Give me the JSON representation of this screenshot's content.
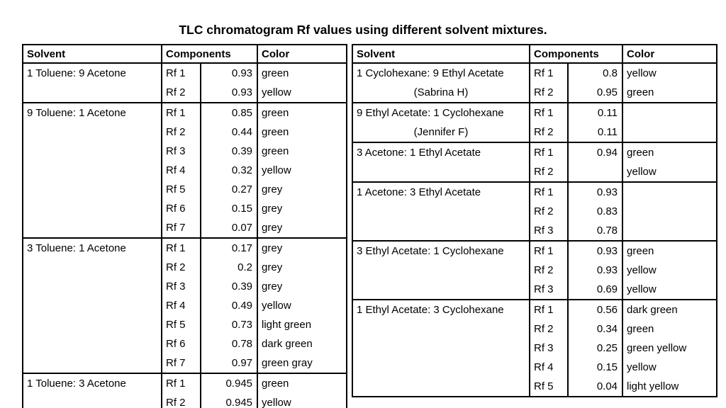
{
  "page": {
    "title": "TLC chromatogram Rf values using different solvent mixtures."
  },
  "columns": {
    "solvent": "Solvent",
    "components": "Components",
    "color": "Color"
  },
  "tables": [
    {
      "id": "left",
      "groups": [
        {
          "solvent": [
            "1 Toluene: 9 Acetone"
          ],
          "rows": [
            {
              "rf": "Rf 1",
              "value": "0.93",
              "color": "green"
            },
            {
              "rf": "Rf 2",
              "value": "0.93",
              "color": "yellow"
            }
          ]
        },
        {
          "solvent": [
            "9 Toluene: 1 Acetone"
          ],
          "rows": [
            {
              "rf": "Rf 1",
              "value": "0.85",
              "color": "green"
            },
            {
              "rf": "Rf 2",
              "value": "0.44",
              "color": "green"
            },
            {
              "rf": "Rf 3",
              "value": "0.39",
              "color": "green"
            },
            {
              "rf": "Rf 4",
              "value": "0.32",
              "color": "yellow"
            },
            {
              "rf": "Rf 5",
              "value": "0.27",
              "color": "grey"
            },
            {
              "rf": "Rf 6",
              "value": "0.15",
              "color": "grey"
            },
            {
              "rf": "Rf 7",
              "value": "0.07",
              "color": "grey"
            }
          ]
        },
        {
          "solvent": [
            "3 Toluene: 1 Acetone"
          ],
          "rows": [
            {
              "rf": "Rf 1",
              "value": "0.17",
              "color": "grey"
            },
            {
              "rf": "Rf 2",
              "value": "0.2",
              "color": "grey"
            },
            {
              "rf": "Rf 3",
              "value": "0.39",
              "color": "grey"
            },
            {
              "rf": "Rf 4",
              "value": "0.49",
              "color": "yellow"
            },
            {
              "rf": "Rf 5",
              "value": "0.73",
              "color": "light green"
            },
            {
              "rf": "Rf 6",
              "value": "0.78",
              "color": "dark green"
            },
            {
              "rf": "Rf 7",
              "value": "0.97",
              "color": "green gray"
            }
          ]
        },
        {
          "solvent": [
            "1 Toluene: 3 Acetone"
          ],
          "rows": [
            {
              "rf": "Rf 1",
              "value": "0.945",
              "color": "green"
            },
            {
              "rf": "Rf 2",
              "value": "0.945",
              "color": "yellow"
            }
          ]
        }
      ]
    },
    {
      "id": "right",
      "groups": [
        {
          "solvent": [
            "1 Cyclohexane: 9 Ethyl Acetate",
            "(Sabrina H)"
          ],
          "rows": [
            {
              "rf": "Rf 1",
              "value": "0.8",
              "color": "yellow"
            },
            {
              "rf": "Rf 2",
              "value": "0.95",
              "color": "green"
            }
          ]
        },
        {
          "solvent": [
            "9 Ethyl Acetate: 1 Cyclohexane",
            "(Jennifer F)"
          ],
          "rows": [
            {
              "rf": "Rf 1",
              "value": "0.11",
              "color": ""
            },
            {
              "rf": "Rf 2",
              "value": "0.11",
              "color": ""
            }
          ]
        },
        {
          "solvent": [
            "3 Acetone: 1 Ethyl Acetate"
          ],
          "rows": [
            {
              "rf": "Rf 1",
              "value": "0.94",
              "color": "green"
            },
            {
              "rf": "Rf 2",
              "value": "",
              "color": "yellow"
            }
          ]
        },
        {
          "solvent": [
            "1 Acetone: 3 Ethyl Acetate"
          ],
          "rows": [
            {
              "rf": "Rf 1",
              "value": "0.93",
              "color": ""
            },
            {
              "rf": "Rf 2",
              "value": "0.83",
              "color": ""
            },
            {
              "rf": "Rf 3",
              "value": "0.78",
              "color": ""
            }
          ]
        },
        {
          "solvent": [
            "3 Ethyl Acetate: 1 Cyclohexane"
          ],
          "rows": [
            {
              "rf": "Rf 1",
              "value": "0.93",
              "color": "green"
            },
            {
              "rf": "Rf 2",
              "value": "0.93",
              "color": "yellow"
            },
            {
              "rf": "Rf 3",
              "value": "0.69",
              "color": "yellow"
            }
          ]
        },
        {
          "solvent": [
            "1 Ethyl Acetate: 3 Cyclohexane"
          ],
          "rows": [
            {
              "rf": "Rf 1",
              "value": "0.56",
              "color": "dark green"
            },
            {
              "rf": "Rf 2",
              "value": "0.34",
              "color": "green"
            },
            {
              "rf": "Rf 3",
              "value": "0.25",
              "color": "green yellow"
            },
            {
              "rf": "Rf 4",
              "value": "0.15",
              "color": "yellow"
            },
            {
              "rf": "Rf 5",
              "value": "0.04",
              "color": "light yellow"
            }
          ]
        }
      ]
    }
  ]
}
